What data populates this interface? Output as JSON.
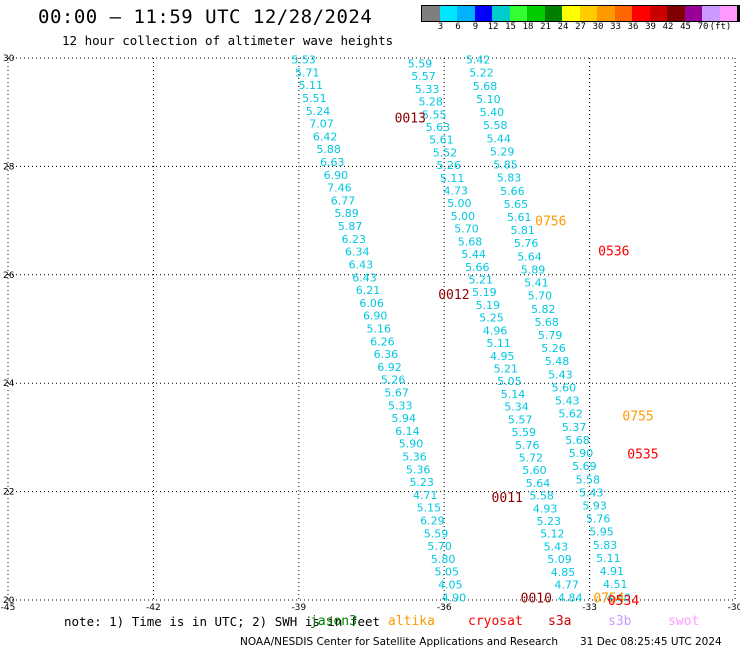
{
  "header": {
    "title": "00:00 – 11:59 UTC 12/28/2024",
    "subtitle": "12 hour collection of altimeter wave heights"
  },
  "scale": {
    "colors": [
      "#7f7f7f",
      "#00e5ff",
      "#00b2ff",
      "#0000ff",
      "#00cccc",
      "#33ff33",
      "#00cc00",
      "#007f00",
      "#ffff00",
      "#ffcc00",
      "#ff9900",
      "#ff6600",
      "#ff0000",
      "#cc0000",
      "#7f0000",
      "#990099",
      "#cc99ff",
      "#ff99ff",
      "#000000"
    ],
    "labels": [
      "3",
      "6",
      "9",
      "12",
      "15",
      "18",
      "21",
      "24",
      "27",
      "30",
      "33",
      "36",
      "39",
      "42",
      "45",
      "70",
      "(ft)"
    ]
  },
  "note": "note: 1) Time is in UTC; 2) SWH is in feet",
  "legend": [
    {
      "name": "jason3",
      "color": "#008000"
    },
    {
      "name": "altika",
      "color": "#ff9900"
    },
    {
      "name": "cryosat",
      "color": "#ff0000"
    },
    {
      "name": "s3a",
      "color": "#cc0000"
    },
    {
      "name": "s3b",
      "color": "#cc99ff"
    },
    {
      "name": "swot",
      "color": "#ff99ff"
    }
  ],
  "footer": {
    "credit": "NOAA/NESDIS Center for Satellite Applications and Research",
    "timestamp": "31 Dec 08:25:45 UTC 2024"
  },
  "chart_data": {
    "type": "scatter",
    "grid": true,
    "xlim": [
      -45,
      -30
    ],
    "ylim": [
      20,
      30
    ],
    "x_ticks": [
      -45,
      -42,
      -39,
      -36,
      -33,
      -30
    ],
    "y_ticks": [
      20,
      22,
      24,
      26,
      28,
      30
    ],
    "x_tick_labels": [
      "-45",
      "-42",
      "-39",
      "-36",
      "-33",
      "-30"
    ],
    "y_tick_labels": [
      "20",
      "22",
      "24",
      "26",
      "28",
      "30"
    ],
    "tracks": [
      {
        "name": "track-a",
        "color": "#00c8e0",
        "start": [
          -38.9,
          29.97
        ],
        "end": [
          -35.8,
          20.05
        ],
        "values": [
          "5.53",
          "5.71",
          "5.11",
          "5.51",
          "5.24",
          "7.07",
          "6.42",
          "5.88",
          "6.63",
          "6.90",
          "7.46",
          "6.77",
          "5.89",
          "5.87",
          "6.23",
          "6.34",
          "6.43",
          "6.43",
          "6.21",
          "6.06",
          "6.90",
          "5.16",
          "6.26",
          "6.36",
          "6.92",
          "5.26",
          "5.67",
          "5.33",
          "5.94",
          "6.14",
          "5.90",
          "5.36",
          "5.36",
          "5.23",
          "4.71",
          "5.15",
          "6.29",
          "5.59",
          "5.70",
          "5.80",
          "5.05",
          "4.05",
          "4.90"
        ]
      },
      {
        "name": "track-b",
        "color": "#00c8e0",
        "start": [
          -36.5,
          29.9
        ],
        "end": [
          -33.4,
          20.05
        ],
        "values": [
          "5.59",
          "5.57",
          "5.33",
          "5.28",
          "5.55",
          "5.63",
          "5.61",
          "5.52",
          "5.26",
          "5.11",
          "4.73",
          "5.00",
          "5.00",
          "5.70",
          "5.68",
          "5.44",
          "5.66",
          "5.21",
          "5.19",
          "5.19",
          "5.25",
          "4.96",
          "5.11",
          "4.95",
          "5.21",
          "5.05",
          "5.14",
          "5.34",
          "5.57",
          "5.59",
          "5.76",
          "5.72",
          "5.60",
          "5.64",
          "5.58",
          "4.93",
          "5.23",
          "5.12",
          "5.43",
          "5.09",
          "4.85",
          "4.77",
          "4.84"
        ]
      },
      {
        "name": "track-c",
        "color": "#00c8e0",
        "start": [
          -35.3,
          29.97
        ],
        "end": [
          -32.4,
          20.05
        ],
        "values": [
          "5.42",
          "5.22",
          "5.68",
          "5.10",
          "5.40",
          "5.58",
          "5.44",
          "5.29",
          "5.85",
          "5.83",
          "5.66",
          "5.65",
          "5.61",
          "5.81",
          "5.76",
          "5.64",
          "5.89",
          "5.41",
          "5.70",
          "5.82",
          "5.68",
          "5.79",
          "5.26",
          "5.48",
          "5.43",
          "5.60",
          "5.43",
          "5.62",
          "5.37",
          "5.68",
          "5.90",
          "5.69",
          "5.58",
          "5.43",
          "5.93",
          "5.76",
          "5.95",
          "5.83",
          "5.11",
          "4.91",
          "4.51",
          "4.60"
        ]
      }
    ],
    "time_labels": [
      {
        "text": "0013",
        "x": -36.7,
        "y": 28.9,
        "color": "#8b0000"
      },
      {
        "text": "0012",
        "x": -35.8,
        "y": 25.65,
        "color": "#8b0000"
      },
      {
        "text": "0011",
        "x": -34.7,
        "y": 21.9,
        "color": "#8b0000"
      },
      {
        "text": "0010",
        "x": -34.1,
        "y": 20.05,
        "color": "#8b0000"
      },
      {
        "text": "0756",
        "x": -33.8,
        "y": 27.0,
        "color": "#ff9900"
      },
      {
        "text": "0536",
        "x": -32.5,
        "y": 26.45,
        "color": "#ff0000"
      },
      {
        "text": "0755",
        "x": -32.0,
        "y": 23.4,
        "color": "#ff9900"
      },
      {
        "text": "0535",
        "x": -31.9,
        "y": 22.7,
        "color": "#ff0000"
      },
      {
        "text": "0754",
        "x": -32.6,
        "y": 20.05,
        "color": "#ff9900"
      },
      {
        "text": "0534",
        "x": -32.3,
        "y": 20.0,
        "color": "#ff0000"
      }
    ]
  }
}
